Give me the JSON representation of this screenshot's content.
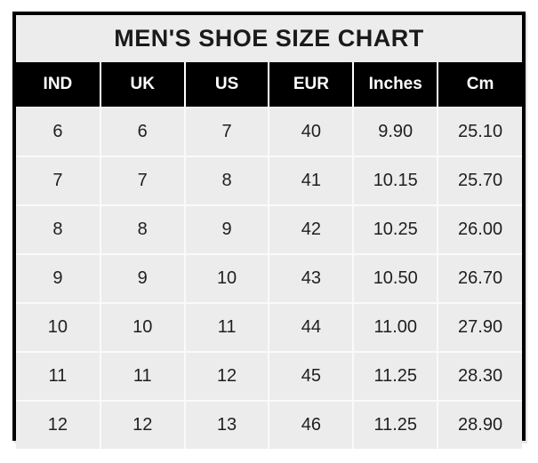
{
  "title": "MEN'S SHOE SIZE CHART",
  "colors": {
    "page_bg": "#ffffff",
    "panel_bg": "#ececec",
    "border": "#000000",
    "header_bg": "#000000",
    "header_text": "#ffffff",
    "gridline": "#fafafa",
    "body_text": "#1f1f1f"
  },
  "chart_data": {
    "type": "table",
    "title": "MEN'S SHOE SIZE CHART",
    "columns": [
      "IND",
      "UK",
      "US",
      "EUR",
      "Inches",
      "Cm"
    ],
    "rows": [
      [
        "6",
        "6",
        "7",
        "40",
        "9.90",
        "25.10"
      ],
      [
        "7",
        "7",
        "8",
        "41",
        "10.15",
        "25.70"
      ],
      [
        "8",
        "8",
        "9",
        "42",
        "10.25",
        "26.00"
      ],
      [
        "9",
        "9",
        "10",
        "43",
        "10.50",
        "26.70"
      ],
      [
        "10",
        "10",
        "11",
        "44",
        "11.00",
        "27.90"
      ],
      [
        "11",
        "11",
        "12",
        "45",
        "11.25",
        "28.30"
      ],
      [
        "12",
        "12",
        "13",
        "46",
        "11.25",
        "28.90"
      ]
    ]
  }
}
